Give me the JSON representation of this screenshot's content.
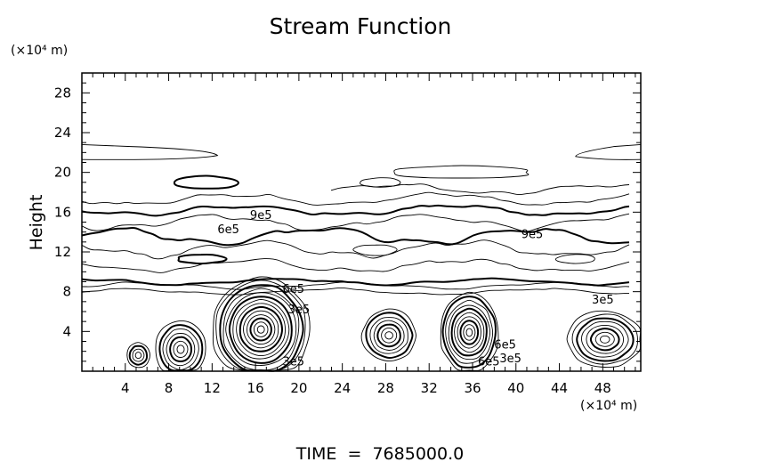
{
  "chart_data": {
    "type": "contour",
    "title": "Stream Function",
    "xlabel": "",
    "ylabel": "Height",
    "x_unit": "(×10⁴ m)",
    "y_unit": "(×10⁴ m)",
    "xlim": [
      0,
      51.5
    ],
    "ylim": [
      0,
      30
    ],
    "x_ticks": [
      4,
      8,
      12,
      16,
      20,
      24,
      28,
      32,
      36,
      40,
      44,
      48
    ],
    "y_ticks": [
      4,
      8,
      12,
      16,
      20,
      24,
      28
    ],
    "grid": false,
    "footer": "TIME  =  7685000.0",
    "contour_labels": [
      {
        "text": "9e5",
        "x": 16.5,
        "y": 15.3
      },
      {
        "text": "6e5",
        "x": 13.5,
        "y": 13.9
      },
      {
        "text": "9e5",
        "x": 41.5,
        "y": 13.4
      },
      {
        "text": "6e5",
        "x": 19.5,
        "y": 7.9
      },
      {
        "text": "3e5",
        "x": 20.0,
        "y": 5.8
      },
      {
        "text": "3e5",
        "x": 48.0,
        "y": 6.8
      },
      {
        "text": "3e5",
        "x": 19.5,
        "y": 0.6
      },
      {
        "text": "6e5",
        "x": 39.0,
        "y": 2.3
      },
      {
        "text": "6e5",
        "x": 37.5,
        "y": 0.6
      },
      {
        "text": "3e5",
        "x": 39.5,
        "y": 0.9
      }
    ],
    "vortex_centers": [
      {
        "x": 5.2,
        "y": 1.6
      },
      {
        "x": 9.1,
        "y": 2.2
      },
      {
        "x": 16.5,
        "y": 4.2
      },
      {
        "x": 28.3,
        "y": 3.6
      },
      {
        "x": 35.7,
        "y": 3.9
      },
      {
        "x": 48.2,
        "y": 3.2
      }
    ]
  }
}
